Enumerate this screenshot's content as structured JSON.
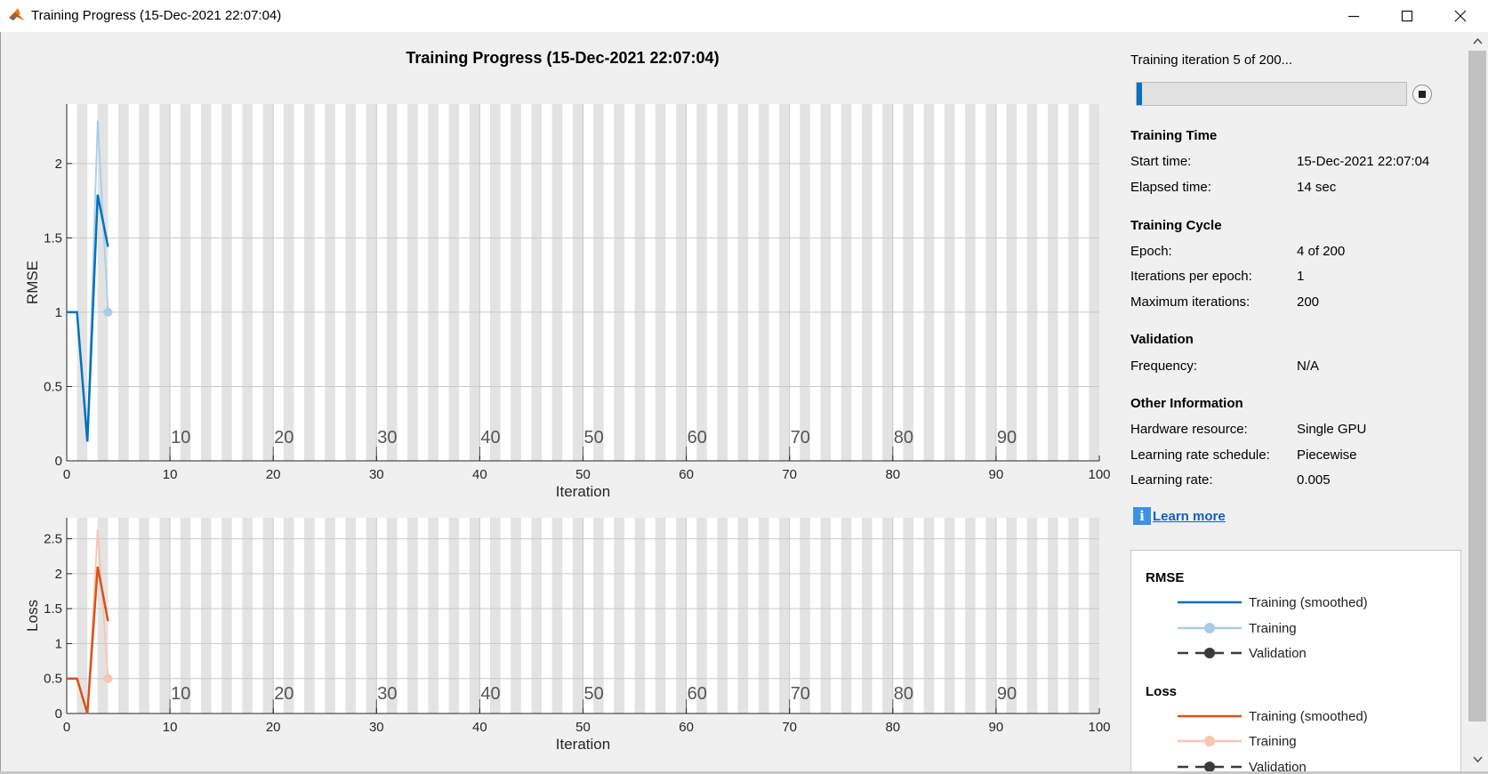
{
  "window": {
    "title": "Training Progress (15-Dec-2021 22:07:04)",
    "icon": "matlab-logo-icon",
    "controls": [
      "minimize-icon",
      "maximize-icon",
      "close-icon"
    ]
  },
  "main_title": "Training Progress (15-Dec-2021 22:07:04)",
  "chart_data": [
    {
      "type": "line",
      "title": "",
      "xlabel": "Iteration",
      "ylabel": "RMSE",
      "xlim": [
        0,
        100
      ],
      "ylim": [
        0,
        2.4
      ],
      "xticks": [
        "0",
        "10",
        "20",
        "30",
        "40",
        "50",
        "60",
        "70",
        "80",
        "90",
        "100"
      ],
      "yticks": [
        "0",
        "0.5",
        "1",
        "1.5",
        "2"
      ],
      "epoch_labels": [
        "10",
        "20",
        "30",
        "40",
        "50",
        "60",
        "70",
        "80",
        "90"
      ],
      "epoch_bands": "alternating light gray / white vertical stripes, one per epoch",
      "series": [
        {
          "name": "Training (smoothed)",
          "color": "#0072bd",
          "x": [
            1,
            2,
            3,
            4
          ],
          "y": [
            1.0,
            0.13,
            1.79,
            1.44
          ]
        },
        {
          "name": "Training",
          "color": "#a9cde8",
          "x": [
            1,
            2,
            3,
            4
          ],
          "y": [
            1.0,
            0.13,
            2.29,
            1.0
          ]
        }
      ]
    },
    {
      "type": "line",
      "title": "",
      "xlabel": "Iteration",
      "ylabel": "Loss",
      "xlim": [
        0,
        100
      ],
      "ylim": [
        0,
        2.8
      ],
      "xticks": [
        "0",
        "10",
        "20",
        "30",
        "40",
        "50",
        "60",
        "70",
        "80",
        "90",
        "100"
      ],
      "yticks": [
        "0",
        "0.5",
        "1",
        "1.5",
        "2",
        "2.5"
      ],
      "epoch_labels": [
        "10",
        "20",
        "30",
        "40",
        "50",
        "60",
        "70",
        "80",
        "90"
      ],
      "series": [
        {
          "name": "Training (smoothed)",
          "color": "#d95319",
          "x": [
            1,
            2,
            3,
            4
          ],
          "y": [
            0.5,
            0.0,
            2.1,
            1.32
          ]
        },
        {
          "name": "Training",
          "color": "#f4c6b3",
          "x": [
            1,
            2,
            3,
            4
          ],
          "y": [
            0.5,
            0.0,
            2.63,
            0.5
          ]
        }
      ]
    }
  ],
  "progress": {
    "text": "Training iteration 5 of 200...",
    "fraction": 0.02,
    "stop_icon": "stop-icon"
  },
  "training_time": {
    "heading": "Training Time",
    "rows": [
      {
        "label": "Start time:",
        "value": "15-Dec-2021 22:07:04"
      },
      {
        "label": "Elapsed time:",
        "value": "14 sec"
      }
    ]
  },
  "training_cycle": {
    "heading": "Training Cycle",
    "rows": [
      {
        "label": "Epoch:",
        "value": "4 of 200"
      },
      {
        "label": "Iterations per epoch:",
        "value": "1"
      },
      {
        "label": "Maximum iterations:",
        "value": "200"
      }
    ]
  },
  "validation": {
    "heading": "Validation",
    "rows": [
      {
        "label": "Frequency:",
        "value": "N/A"
      }
    ]
  },
  "other_info": {
    "heading": "Other Information",
    "rows": [
      {
        "label": "Hardware resource:",
        "value": "Single GPU"
      },
      {
        "label": "Learning rate schedule:",
        "value": "Piecewise"
      },
      {
        "label": "Learning rate:",
        "value": "0.005"
      }
    ]
  },
  "learn_more": {
    "label": "Learn more",
    "icon": "info-icon"
  },
  "legend": {
    "rmse_heading": "RMSE",
    "rmse_items": [
      "Training (smoothed)",
      "Training",
      "Validation"
    ],
    "loss_heading": "Loss",
    "loss_items": [
      "Training (smoothed)",
      "Training",
      "Validation"
    ],
    "colors": {
      "rmse_smoothed": "#0072bd",
      "rmse_training": "#a9cde8",
      "loss_smoothed": "#d95319",
      "loss_training": "#f4c6b3",
      "validation": "#3a3a3a"
    }
  }
}
